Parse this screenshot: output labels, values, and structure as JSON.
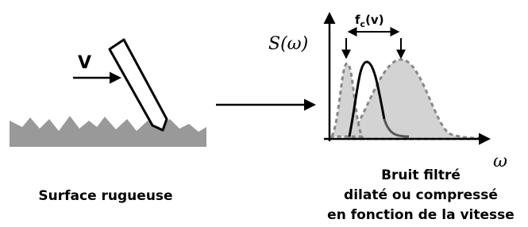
{
  "left": {
    "velocity_label": "V",
    "caption": "Surface rugueuse"
  },
  "plot": {
    "y_label": "S(ω)",
    "x_label": "ω",
    "annotation": {
      "symbol": "f",
      "subscript": "c",
      "argument": "(v)"
    },
    "caption": [
      "Bruit filtré",
      "dilaté ou compressé",
      "en fonction de la vitesse"
    ]
  }
}
